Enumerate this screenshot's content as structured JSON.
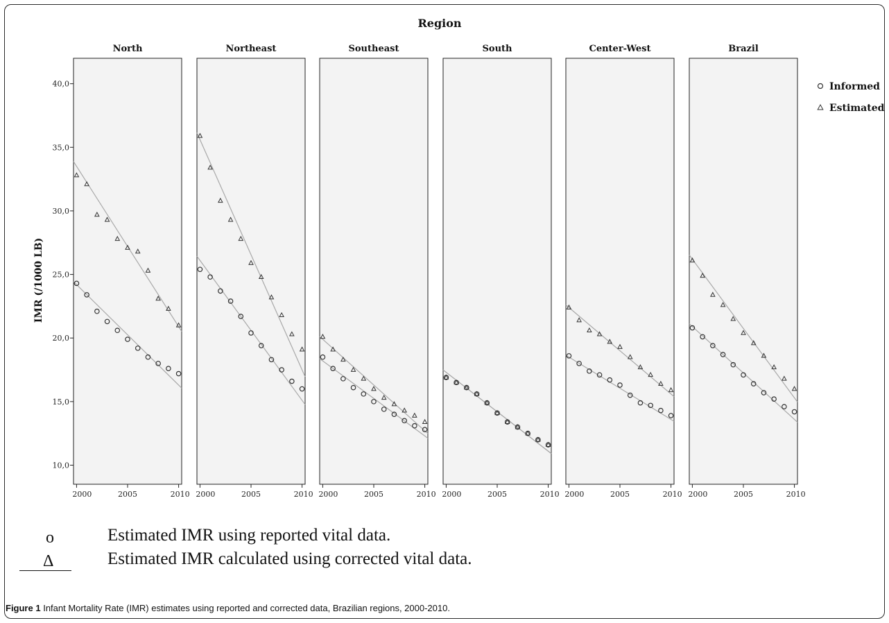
{
  "chart_data": {
    "type": "scatter",
    "header": "Region",
    "ylabel": "IMR (/1000 LB)",
    "ylim": [
      8.5,
      42.0
    ],
    "yticks": [
      "10,0",
      "15,0",
      "20,0",
      "25,0",
      "30,0",
      "35,0",
      "40,0"
    ],
    "ytick_values": [
      10,
      15,
      20,
      25,
      30,
      35,
      40
    ],
    "xlim": [
      1999.7,
      2010.3
    ],
    "xticks": [
      "2000",
      "2005",
      "2010"
    ],
    "xtick_values": [
      2000,
      2005,
      2010
    ],
    "x": [
      2000,
      2001,
      2002,
      2003,
      2004,
      2005,
      2006,
      2007,
      2008,
      2009,
      2010
    ],
    "legend": [
      {
        "name": "Informed",
        "marker": "circle"
      },
      {
        "name": "Estimated",
        "marker": "triangle"
      }
    ],
    "legend_position": "right",
    "colors": {
      "panel_bg": "#f3f3f3",
      "fit_line": "#a8a8a8",
      "marker": "#333333"
    },
    "panels": [
      {
        "region": "North",
        "informed": [
          24.3,
          23.4,
          22.1,
          21.3,
          20.6,
          19.9,
          19.2,
          18.5,
          18.0,
          17.6,
          17.2
        ],
        "estimated": [
          32.8,
          32.1,
          29.7,
          29.3,
          27.8,
          27.1,
          26.8,
          25.3,
          23.1,
          22.3,
          21.0
        ],
        "fit_informed": [
          24.2,
          16.3
        ],
        "fit_estimated": [
          33.5,
          20.9
        ]
      },
      {
        "region": "Northeast",
        "informed": [
          25.4,
          24.8,
          23.7,
          22.9,
          21.7,
          20.4,
          19.4,
          18.3,
          17.5,
          16.6,
          16.0
        ],
        "estimated": [
          35.9,
          33.4,
          30.8,
          29.3,
          27.8,
          25.9,
          24.8,
          23.2,
          21.8,
          20.3,
          19.1
        ],
        "fit_informed": [
          26.1,
          15.1
        ],
        "fit_estimated": [
          35.6,
          17.5
        ]
      },
      {
        "region": "Southeast",
        "informed": [
          18.5,
          17.6,
          16.8,
          16.1,
          15.6,
          15.0,
          14.4,
          14.0,
          13.5,
          13.1,
          12.8
        ],
        "estimated": [
          20.1,
          19.1,
          18.3,
          17.5,
          16.8,
          16.0,
          15.3,
          14.8,
          14.3,
          13.9,
          13.4
        ],
        "fit_informed": [
          18.2,
          12.3
        ],
        "fit_estimated": [
          19.9,
          12.7
        ]
      },
      {
        "region": "South",
        "informed": [
          16.9,
          16.5,
          16.1,
          15.6,
          14.9,
          14.1,
          13.4,
          13.0,
          12.5,
          12.0,
          11.6
        ],
        "estimated": [
          16.9,
          16.5,
          16.1,
          15.6,
          14.9,
          14.1,
          13.4,
          13.0,
          12.5,
          12.0,
          11.6
        ],
        "fit_informed": [
          17.3,
          11.1
        ],
        "fit_estimated": [
          17.3,
          11.1
        ]
      },
      {
        "region": "Center-West",
        "informed": [
          18.6,
          18.0,
          17.4,
          17.1,
          16.7,
          16.3,
          15.5,
          14.9,
          14.7,
          14.3,
          13.9
        ],
        "estimated": [
          22.4,
          21.4,
          20.6,
          20.3,
          19.7,
          19.3,
          18.5,
          17.7,
          17.1,
          16.4,
          15.9
        ],
        "fit_informed": [
          18.5,
          13.6
        ],
        "fit_estimated": [
          22.4,
          15.6
        ]
      },
      {
        "region": "Brazil",
        "informed": [
          20.8,
          20.1,
          19.4,
          18.7,
          17.9,
          17.1,
          16.4,
          15.7,
          15.2,
          14.6,
          14.2
        ],
        "estimated": [
          26.1,
          24.9,
          23.4,
          22.6,
          21.5,
          20.4,
          19.6,
          18.6,
          17.7,
          16.8,
          16.0
        ],
        "fit_informed": [
          20.9,
          13.6
        ],
        "fit_estimated": [
          26.2,
          15.3
        ]
      }
    ]
  },
  "notes": {
    "informed_symbol": "o",
    "informed_text": "Estimated IMR using reported vital data.",
    "estimated_symbol": "Δ",
    "estimated_text": "Estimated IMR calculated using corrected vital data."
  },
  "caption": {
    "label": "Figure 1",
    "text": "Infant Mortality Rate (IMR) estimates using reported and corrected data, Brazilian regions, 2000-2010."
  }
}
